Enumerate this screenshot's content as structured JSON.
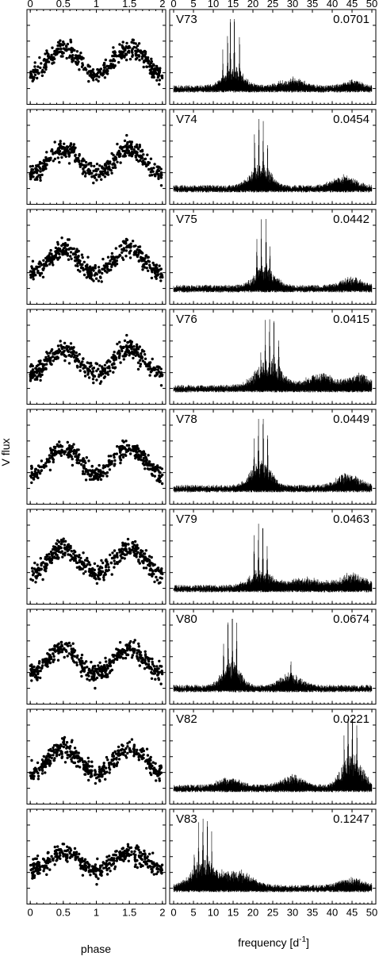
{
  "figure": {
    "ylabel": "V flux",
    "xlabel_left": "phase",
    "xlabel_right_main": "frequency [d",
    "xlabel_right_sup": "-1",
    "xlabel_right_end": "]"
  },
  "chart_data": {
    "type": "scatter",
    "phase_ticks": [
      0,
      0.5,
      1,
      1.5,
      2
    ],
    "phase_tick_labels": [
      "0",
      "0.5",
      "1",
      "1.5",
      "2"
    ],
    "phase_xlim": [
      -0.05,
      2.05
    ],
    "frequency_ticks": [
      0,
      5,
      10,
      15,
      20,
      25,
      30,
      35,
      40,
      45,
      50
    ],
    "frequency_tick_labels": [
      "0",
      "5",
      "10",
      "15",
      "20",
      "25",
      "30",
      "35",
      "40",
      "45",
      "50"
    ],
    "frequency_xlim": [
      -1,
      51
    ],
    "panels": [
      {
        "star": "V73",
        "amplitude": "0.0701",
        "peak_frequencies": [
          14.3,
          15.3,
          13.6,
          16.6,
          12.4
        ],
        "peak_heights": [
          0.92,
          0.88,
          0.6,
          0.55,
          0.35
        ],
        "phase_curve": "double",
        "spectrum_humps": [
          [
            15,
            0.18,
            3.5
          ],
          [
            30,
            0.08,
            4
          ],
          [
            45,
            0.06,
            3
          ]
        ]
      },
      {
        "star": "V74",
        "amplitude": "0.0454",
        "peak_frequencies": [
          21.5,
          22.6,
          20.4,
          23.7
        ],
        "peak_heights": [
          0.75,
          0.78,
          0.6,
          0.45
        ],
        "phase_curve": "double",
        "spectrum_humps": [
          [
            22,
            0.22,
            3.5
          ],
          [
            43,
            0.1,
            4
          ]
        ]
      },
      {
        "star": "V75",
        "amplitude": "0.0442",
        "peak_frequencies": [
          22.1,
          23.3,
          21.0,
          24.3
        ],
        "peak_heights": [
          0.72,
          0.8,
          0.55,
          0.42
        ],
        "phase_curve": "double",
        "spectrum_humps": [
          [
            23,
            0.2,
            3.5
          ],
          [
            45,
            0.08,
            4
          ]
        ]
      },
      {
        "star": "V76",
        "amplitude": "0.0415",
        "peak_frequencies": [
          24.2,
          25.3,
          23.1,
          26.5,
          22.0
        ],
        "peak_heights": [
          0.8,
          0.78,
          0.6,
          0.5,
          0.35
        ],
        "phase_curve": "double",
        "spectrum_humps": [
          [
            24,
            0.25,
            4.5
          ],
          [
            37,
            0.12,
            5
          ],
          [
            47,
            0.12,
            4
          ]
        ]
      },
      {
        "star": "V78",
        "amplitude": "0.0449",
        "peak_frequencies": [
          22.6,
          21.4,
          23.7,
          20.3
        ],
        "peak_heights": [
          0.8,
          0.7,
          0.55,
          0.42
        ],
        "phase_curve": "double",
        "spectrum_humps": [
          [
            22,
            0.25,
            3.5
          ],
          [
            44,
            0.12,
            4
          ]
        ]
      },
      {
        "star": "V79",
        "amplitude": "0.0463",
        "peak_frequencies": [
          21.4,
          22.5,
          20.3,
          23.6
        ],
        "peak_heights": [
          0.75,
          0.72,
          0.55,
          0.4
        ],
        "phase_curve": "double",
        "spectrum_humps": [
          [
            22,
            0.15,
            4
          ],
          [
            33,
            0.08,
            5
          ],
          [
            45,
            0.12,
            5
          ]
        ]
      },
      {
        "star": "V80",
        "amplitude": "0.0674",
        "peak_frequencies": [
          14.8,
          13.7,
          15.9,
          12.6,
          29.6
        ],
        "peak_heights": [
          0.85,
          0.75,
          0.6,
          0.4,
          0.2
        ],
        "phase_curve": "double",
        "spectrum_humps": [
          [
            14.5,
            0.25,
            3
          ],
          [
            29.5,
            0.12,
            3.5
          ]
        ]
      },
      {
        "star": "V82",
        "amplitude": "0.0221",
        "peak_frequencies": [
          45.1,
          44.0,
          46.2,
          43.0
        ],
        "peak_heights": [
          0.8,
          0.7,
          0.55,
          0.45
        ],
        "phase_curve": "double",
        "spectrum_humps": [
          [
            45,
            0.3,
            3.5
          ],
          [
            30,
            0.1,
            4
          ],
          [
            14,
            0.08,
            4
          ]
        ]
      },
      {
        "star": "V83",
        "amplitude": "0.1247",
        "peak_frequencies": [
          7.4,
          8.5,
          6.3,
          9.6,
          5.2
        ],
        "peak_heights": [
          0.72,
          0.74,
          0.55,
          0.45,
          0.3
        ],
        "phase_curve": "flat",
        "spectrum_humps": [
          [
            7.5,
            0.25,
            4
          ],
          [
            16,
            0.15,
            5
          ],
          [
            45,
            0.08,
            4
          ]
        ]
      }
    ]
  }
}
